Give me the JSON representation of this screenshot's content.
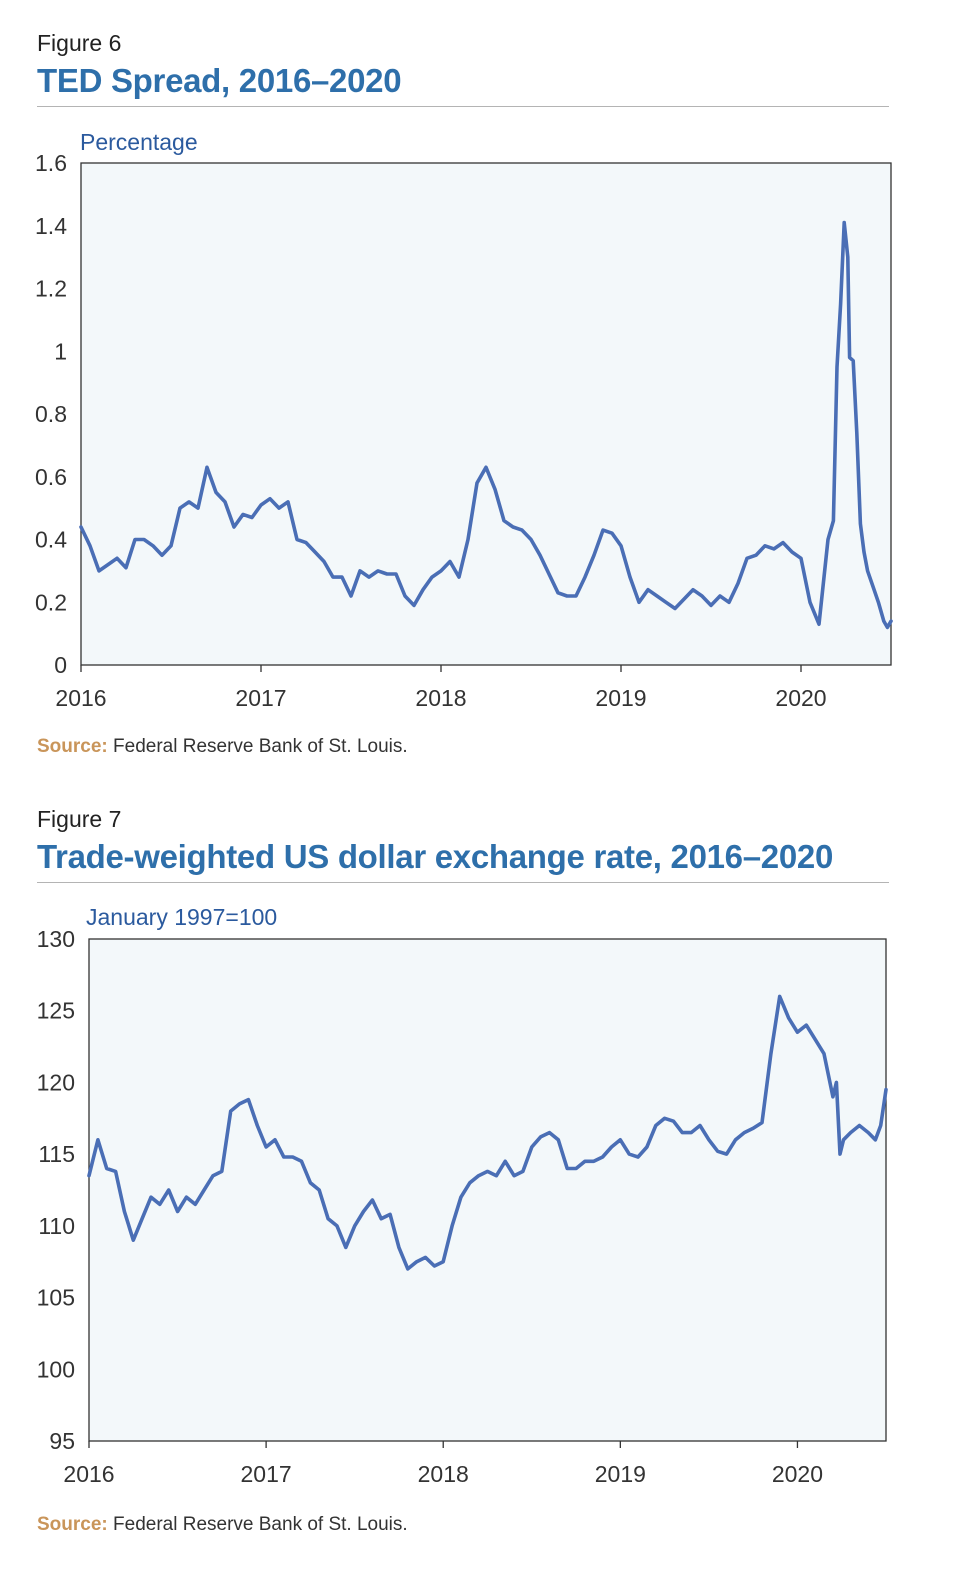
{
  "figures": [
    {
      "label": "Figure 6",
      "title": "TED Spread, 2016–2020",
      "source_key": "Source:",
      "source_text": " Federal Reserve Bank of St. Louis."
    },
    {
      "label": "Figure 7",
      "title": "Trade-weighted US dollar exchange rate, 2016–2020",
      "source_key": "Source:",
      "source_text": " Federal Reserve Bank of St. Louis."
    }
  ],
  "colors": {
    "title": "#2e6faa",
    "line": "#4a6eb5",
    "plot_bg": "#f3f8fa",
    "source_key": "#c9955a",
    "unit_label": "#2b5a9e"
  },
  "chart_data": [
    {
      "type": "line",
      "ylabel": "Percentage",
      "ylim": [
        0,
        1.6
      ],
      "yticks": [
        "0",
        "0.2",
        "0.4",
        "0.6",
        "0.8",
        "1",
        "1.2",
        "1.4",
        "1.6"
      ],
      "xlim": [
        2016,
        2020.5
      ],
      "xticks": [
        "2016",
        "2017",
        "2018",
        "2019",
        "2020"
      ],
      "grid": false,
      "series": [
        {
          "x": [
            2016.0,
            2016.05,
            2016.1,
            2016.15,
            2016.2,
            2016.25,
            2016.3,
            2016.35,
            2016.4,
            2016.45,
            2016.5,
            2016.55,
            2016.6,
            2016.65,
            2016.7,
            2016.75,
            2016.8,
            2016.85,
            2016.9,
            2016.95,
            2017.0,
            2017.05,
            2017.1,
            2017.15,
            2017.2,
            2017.25,
            2017.3,
            2017.35,
            2017.4,
            2017.45,
            2017.5,
            2017.55,
            2017.6,
            2017.65,
            2017.7,
            2017.75,
            2017.8,
            2017.85,
            2017.9,
            2017.95,
            2018.0,
            2018.05,
            2018.1,
            2018.15,
            2018.2,
            2018.25,
            2018.3,
            2018.35,
            2018.4,
            2018.45,
            2018.5,
            2018.55,
            2018.6,
            2018.65,
            2018.7,
            2018.75,
            2018.8,
            2018.85,
            2018.9,
            2018.95,
            2019.0,
            2019.05,
            2019.1,
            2019.15,
            2019.2,
            2019.25,
            2019.3,
            2019.35,
            2019.4,
            2019.45,
            2019.5,
            2019.55,
            2019.6,
            2019.65,
            2019.7,
            2019.75,
            2019.8,
            2019.85,
            2019.9,
            2019.95,
            2020.0,
            2020.05,
            2020.1,
            2020.15,
            2020.18,
            2020.2,
            2020.22,
            2020.24,
            2020.26,
            2020.27,
            2020.29,
            2020.31,
            2020.33,
            2020.35,
            2020.37,
            2020.4,
            2020.43,
            2020.46,
            2020.48,
            2020.5
          ],
          "values": [
            0.44,
            0.38,
            0.3,
            0.32,
            0.34,
            0.31,
            0.4,
            0.4,
            0.38,
            0.35,
            0.38,
            0.5,
            0.52,
            0.5,
            0.63,
            0.55,
            0.52,
            0.44,
            0.48,
            0.47,
            0.51,
            0.53,
            0.5,
            0.52,
            0.4,
            0.39,
            0.36,
            0.33,
            0.28,
            0.28,
            0.22,
            0.3,
            0.28,
            0.3,
            0.29,
            0.29,
            0.22,
            0.19,
            0.24,
            0.28,
            0.3,
            0.33,
            0.28,
            0.4,
            0.58,
            0.63,
            0.56,
            0.46,
            0.44,
            0.43,
            0.4,
            0.35,
            0.29,
            0.23,
            0.22,
            0.22,
            0.28,
            0.35,
            0.43,
            0.42,
            0.38,
            0.28,
            0.2,
            0.24,
            0.22,
            0.2,
            0.18,
            0.21,
            0.24,
            0.22,
            0.19,
            0.22,
            0.2,
            0.26,
            0.34,
            0.35,
            0.38,
            0.37,
            0.39,
            0.36,
            0.34,
            0.2,
            0.13,
            0.4,
            0.46,
            0.95,
            1.15,
            1.41,
            1.3,
            0.98,
            0.97,
            0.74,
            0.45,
            0.36,
            0.3,
            0.25,
            0.2,
            0.14,
            0.12,
            0.14
          ]
        }
      ]
    },
    {
      "type": "line",
      "ylabel": "January 1997=100",
      "ylim": [
        95,
        130
      ],
      "yticks": [
        "95",
        "100",
        "105",
        "110",
        "115",
        "120",
        "125",
        "130"
      ],
      "xlim": [
        2016,
        2020.5
      ],
      "xticks": [
        "2016",
        "2017",
        "2018",
        "2019",
        "2020"
      ],
      "grid": false,
      "series": [
        {
          "x": [
            2016.0,
            2016.05,
            2016.1,
            2016.15,
            2016.2,
            2016.25,
            2016.3,
            2016.35,
            2016.4,
            2016.45,
            2016.5,
            2016.55,
            2016.6,
            2016.65,
            2016.7,
            2016.75,
            2016.8,
            2016.85,
            2016.9,
            2016.95,
            2017.0,
            2017.05,
            2017.1,
            2017.15,
            2017.2,
            2017.25,
            2017.3,
            2017.35,
            2017.4,
            2017.45,
            2017.5,
            2017.55,
            2017.6,
            2017.65,
            2017.7,
            2017.75,
            2017.8,
            2017.85,
            2017.9,
            2017.95,
            2018.0,
            2018.05,
            2018.1,
            2018.15,
            2018.2,
            2018.25,
            2018.3,
            2018.35,
            2018.4,
            2018.45,
            2018.5,
            2018.55,
            2018.6,
            2018.65,
            2018.7,
            2018.75,
            2018.8,
            2018.85,
            2018.9,
            2018.95,
            2019.0,
            2019.05,
            2019.1,
            2019.15,
            2019.2,
            2019.25,
            2019.3,
            2019.35,
            2019.4,
            2019.45,
            2019.5,
            2019.55,
            2019.6,
            2019.65,
            2019.7,
            2019.75,
            2019.8,
            2019.85,
            2019.9,
            2019.95,
            2020.0,
            2020.05,
            2020.1,
            2020.15,
            2020.2,
            2020.22,
            2020.24,
            2020.26,
            2020.3,
            2020.35,
            2020.4,
            2020.44,
            2020.47,
            2020.5
          ],
          "values": [
            113.5,
            116.0,
            114.0,
            113.8,
            111.0,
            109.0,
            110.5,
            112.0,
            111.5,
            112.5,
            111.0,
            112.0,
            111.5,
            112.5,
            113.5,
            113.8,
            118.0,
            118.5,
            118.8,
            117.0,
            115.5,
            116.0,
            114.8,
            114.8,
            114.5,
            113.0,
            112.5,
            110.5,
            110.0,
            108.5,
            110.0,
            111.0,
            111.8,
            110.5,
            110.8,
            108.5,
            107.0,
            107.5,
            107.8,
            107.2,
            107.5,
            110.0,
            112.0,
            113.0,
            113.5,
            113.8,
            113.5,
            114.5,
            113.5,
            113.8,
            115.5,
            116.2,
            116.5,
            116.0,
            114.0,
            114.0,
            114.5,
            114.5,
            114.8,
            115.5,
            116.0,
            115.0,
            114.8,
            115.5,
            117.0,
            117.5,
            117.3,
            116.5,
            116.5,
            117.0,
            116.0,
            115.2,
            115.0,
            116.0,
            116.5,
            116.8,
            117.2,
            122.0,
            126.0,
            124.5,
            123.5,
            124.0,
            123.0,
            122.0,
            119.0,
            120.0,
            115.0,
            116.0,
            116.5,
            117.0,
            116.5,
            116.0,
            117.0,
            119.5
          ]
        }
      ]
    }
  ]
}
